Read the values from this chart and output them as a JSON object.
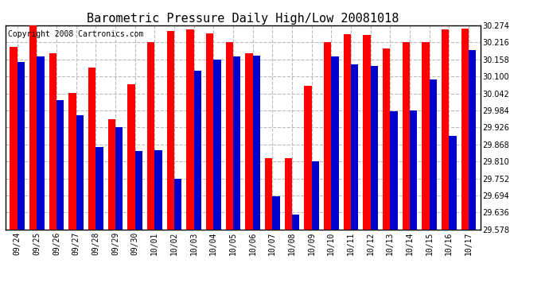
{
  "title": "Barometric Pressure Daily High/Low 20081018",
  "copyright": "Copyright 2008 Cartronics.com",
  "labels": [
    "09/24",
    "09/25",
    "09/26",
    "09/27",
    "09/28",
    "09/29",
    "09/30",
    "10/01",
    "10/02",
    "10/03",
    "10/04",
    "10/05",
    "10/06",
    "10/07",
    "10/08",
    "10/09",
    "10/10",
    "10/11",
    "10/12",
    "10/13",
    "10/14",
    "10/15",
    "10/16",
    "10/17"
  ],
  "highs": [
    30.2,
    30.274,
    30.178,
    30.042,
    30.13,
    29.955,
    30.072,
    30.216,
    30.254,
    30.26,
    30.247,
    30.216,
    30.18,
    29.82,
    29.82,
    30.068,
    30.216,
    30.244,
    30.24,
    30.196,
    30.216,
    30.216,
    30.26,
    30.264
  ],
  "lows": [
    30.15,
    30.168,
    30.02,
    29.968,
    29.858,
    29.926,
    29.846,
    29.848,
    29.752,
    30.118,
    30.158,
    30.168,
    30.172,
    29.69,
    29.63,
    29.81,
    30.168,
    30.14,
    30.136,
    29.982,
    29.984,
    30.09,
    29.896,
    30.19
  ],
  "high_color": "#ff0000",
  "low_color": "#0000cc",
  "bg_color": "#ffffff",
  "grid_color": "#bbbbbb",
  "ymin": 29.578,
  "ymax": 30.274,
  "yticks": [
    29.578,
    29.636,
    29.694,
    29.752,
    29.81,
    29.868,
    29.926,
    29.984,
    30.042,
    30.1,
    30.158,
    30.216,
    30.274
  ],
  "bar_width": 0.38,
  "title_fontsize": 11,
  "tick_fontsize": 7,
  "copyright_fontsize": 7
}
